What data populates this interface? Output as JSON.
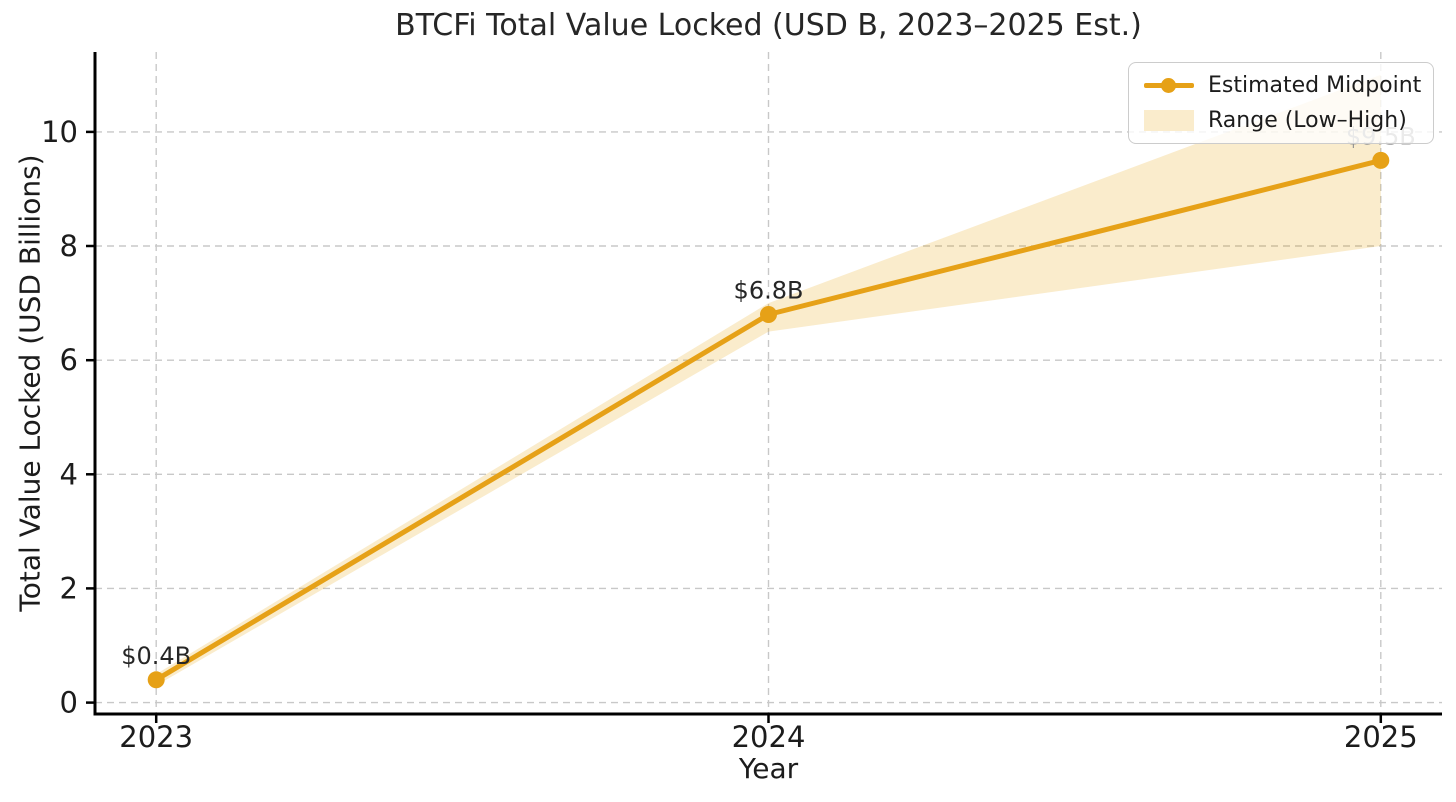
{
  "chart_data": {
    "type": "line",
    "title": "BTCFi Total Value Locked (USD B, 2023–2025 Est.)",
    "xlabel": "Year",
    "ylabel": "Total Value Locked (USD Billions)",
    "x": [
      2023,
      2024,
      2025
    ],
    "x_tick_labels": [
      "2023",
      "2024",
      "2025"
    ],
    "y_ticks": [
      0,
      2,
      4,
      6,
      8,
      10
    ],
    "y_tick_labels": [
      "0",
      "2",
      "4",
      "6",
      "8",
      "10"
    ],
    "xlim": [
      2022.9,
      2025.1
    ],
    "ylim": [
      -0.2,
      11.4
    ],
    "grid": true,
    "grid_style": "dashed",
    "legend_position": "upper right",
    "series": [
      {
        "name": "Estimated Midpoint",
        "kind": "line-with-markers",
        "values": [
          0.4,
          6.8,
          9.5
        ],
        "color": "#E6A117",
        "point_labels": [
          "$0.4B",
          "$6.8B",
          "$9.5B"
        ],
        "point_label_colors": [
          "#262626",
          "#262626",
          "#949494"
        ]
      },
      {
        "name": "Range (Low–High)",
        "kind": "band",
        "low": [
          0.3,
          6.5,
          8.0
        ],
        "high": [
          0.5,
          7.0,
          11.0
        ],
        "color": "#E69F00",
        "opacity": 0.2
      }
    ]
  },
  "legend": {
    "items": [
      {
        "label": "Estimated Midpoint",
        "swatch": "line-marker"
      },
      {
        "label": "Range (Low–High)",
        "swatch": "patch"
      }
    ]
  },
  "colors": {
    "line": "#E6A117",
    "band_fill": "#F9EDD5",
    "text": "#1c1c1c",
    "grid": "#c8c8c8",
    "spine": "#000000",
    "legend_border": "#cccccc"
  }
}
